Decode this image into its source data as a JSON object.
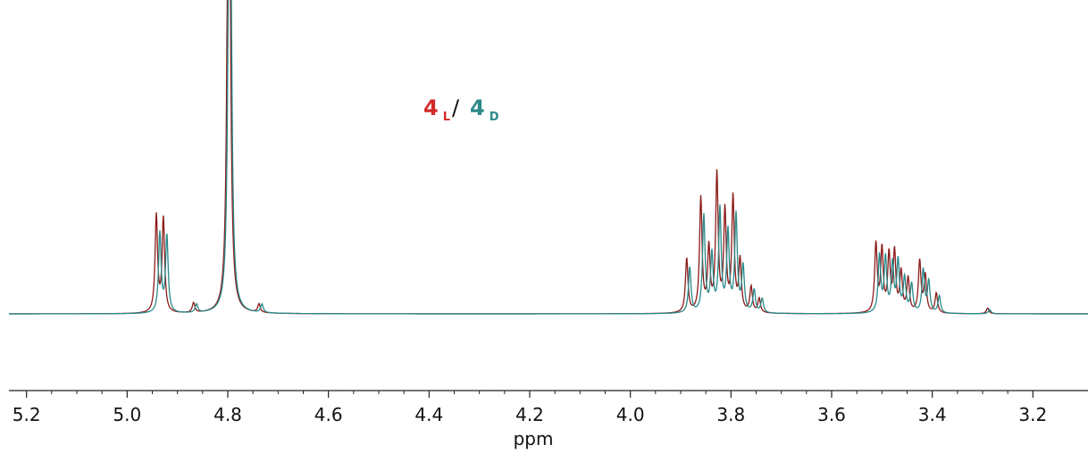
{
  "chart_data": {
    "type": "line",
    "title": "",
    "xlabel": "ppm",
    "ylabel": "",
    "xlim": [
      5.25,
      3.25
    ],
    "x_reversed": true,
    "ylim": [
      0,
      1
    ],
    "grid": false,
    "legend_placement": "top-center",
    "x_ticks": [
      {
        "value": 5.2,
        "label": "5.2"
      },
      {
        "value": 5.0,
        "label": "5.0"
      },
      {
        "value": 4.8,
        "label": "4.8"
      },
      {
        "value": 4.6,
        "label": "4.6"
      },
      {
        "value": 4.4,
        "label": "4.4"
      },
      {
        "value": 4.2,
        "label": "4.2"
      },
      {
        "value": 4.0,
        "label": "4.0"
      },
      {
        "value": 3.8,
        "label": "3.8"
      },
      {
        "value": 3.6,
        "label": "3.6"
      },
      {
        "value": 3.4,
        "label": "3.4"
      },
      {
        "value": 3.2,
        "label": "3.2"
      }
    ],
    "legend": {
      "entries": [
        {
          "main": "4",
          "sub": "L",
          "color": "#d42a2a"
        },
        {
          "main": "4",
          "sub": "D",
          "color": "#2f8a8a"
        }
      ],
      "separator": "/"
    },
    "series": [
      {
        "color": "#8b1a1a",
        "peaks": [
          {
            "x": 4.942,
            "h": 0.34
          },
          {
            "x": 4.928,
            "h": 0.33
          },
          {
            "x": 4.868,
            "h": 0.035
          },
          {
            "x": 4.798,
            "h": 2.5
          },
          {
            "x": 4.738,
            "h": 0.03
          },
          {
            "x": 3.888,
            "h": 0.19
          },
          {
            "x": 3.86,
            "h": 0.4
          },
          {
            "x": 3.844,
            "h": 0.22
          },
          {
            "x": 3.828,
            "h": 0.48
          },
          {
            "x": 3.812,
            "h": 0.35
          },
          {
            "x": 3.796,
            "h": 0.4
          },
          {
            "x": 3.782,
            "h": 0.18
          },
          {
            "x": 3.76,
            "h": 0.09
          },
          {
            "x": 3.744,
            "h": 0.05
          },
          {
            "x": 3.512,
            "h": 0.24
          },
          {
            "x": 3.5,
            "h": 0.22
          },
          {
            "x": 3.486,
            "h": 0.2
          },
          {
            "x": 3.475,
            "h": 0.21
          },
          {
            "x": 3.462,
            "h": 0.14
          },
          {
            "x": 3.448,
            "h": 0.12
          },
          {
            "x": 3.425,
            "h": 0.18
          },
          {
            "x": 3.414,
            "h": 0.13
          },
          {
            "x": 3.392,
            "h": 0.07
          },
          {
            "x": 3.29,
            "h": 0.02
          }
        ]
      },
      {
        "color": "#2a8a8a",
        "peaks": [
          {
            "x": 4.935,
            "h": 0.28
          },
          {
            "x": 4.921,
            "h": 0.27
          },
          {
            "x": 4.862,
            "h": 0.03
          },
          {
            "x": 4.796,
            "h": 2.5
          },
          {
            "x": 4.732,
            "h": 0.03
          },
          {
            "x": 3.882,
            "h": 0.16
          },
          {
            "x": 3.854,
            "h": 0.34
          },
          {
            "x": 3.838,
            "h": 0.2
          },
          {
            "x": 3.822,
            "h": 0.36
          },
          {
            "x": 3.806,
            "h": 0.28
          },
          {
            "x": 3.79,
            "h": 0.34
          },
          {
            "x": 3.776,
            "h": 0.16
          },
          {
            "x": 3.754,
            "h": 0.08
          },
          {
            "x": 3.738,
            "h": 0.05
          },
          {
            "x": 3.505,
            "h": 0.2
          },
          {
            "x": 3.493,
            "h": 0.19
          },
          {
            "x": 3.479,
            "h": 0.17
          },
          {
            "x": 3.468,
            "h": 0.18
          },
          {
            "x": 3.455,
            "h": 0.12
          },
          {
            "x": 3.441,
            "h": 0.1
          },
          {
            "x": 3.418,
            "h": 0.15
          },
          {
            "x": 3.407,
            "h": 0.11
          },
          {
            "x": 3.386,
            "h": 0.06
          },
          {
            "x": 3.286,
            "h": 0.015
          }
        ]
      }
    ]
  }
}
